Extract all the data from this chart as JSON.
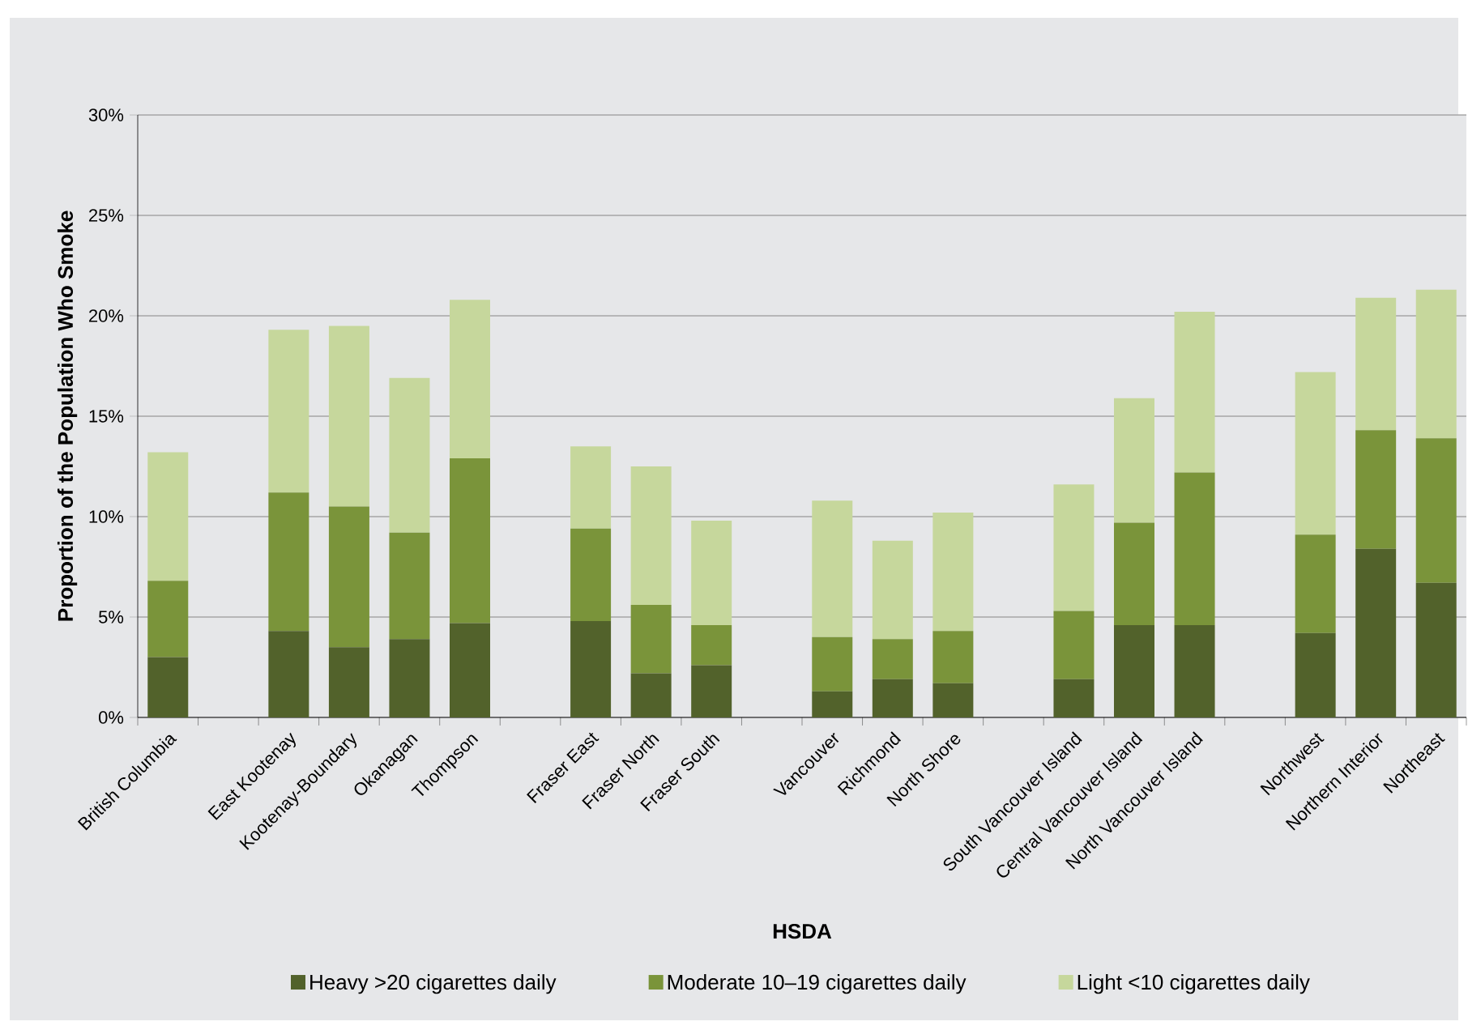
{
  "chart_data": {
    "type": "bar",
    "stacked": true,
    "xlabel": "HSDA",
    "ylabel": "Proportion of the Population Who Smoke",
    "categories": [
      "British Columbia",
      null,
      "East Kootenay",
      "Kootenay-Boundary",
      "Okanagan",
      "Thompson",
      null,
      "Fraser East",
      "Fraser North",
      "Fraser South",
      null,
      "Vancouver",
      "Richmond",
      "North Shore",
      null,
      "South Vancouver Island",
      "Central Vancouver Island",
      "North Vancouver Island",
      null,
      "Northwest",
      "Northern Interior",
      "Northeast"
    ],
    "series": [
      {
        "name": "Heavy >20 cigarettes daily",
        "color": "#52622b",
        "values": [
          3.0,
          null,
          4.3,
          3.5,
          3.9,
          4.7,
          null,
          4.8,
          2.2,
          2.6,
          null,
          1.3,
          1.9,
          1.7,
          null,
          1.9,
          4.6,
          4.6,
          null,
          4.2,
          8.4,
          6.7
        ]
      },
      {
        "name": "Moderate 10–19 cigarettes daily",
        "color": "#7a943a",
        "values": [
          3.8,
          null,
          6.9,
          7.0,
          5.3,
          8.2,
          null,
          4.6,
          3.4,
          2.0,
          null,
          2.7,
          2.0,
          2.6,
          null,
          3.4,
          5.1,
          7.6,
          null,
          4.9,
          5.9,
          7.2
        ]
      },
      {
        "name": "Light <10 cigarettes daily",
        "color": "#c6d79c",
        "values": [
          6.4,
          null,
          8.1,
          9.0,
          7.7,
          7.9,
          null,
          4.1,
          6.9,
          5.2,
          null,
          6.8,
          4.9,
          5.9,
          null,
          6.3,
          6.2,
          8.0,
          null,
          8.1,
          6.6,
          7.4
        ]
      }
    ],
    "ylim": [
      0,
      30
    ],
    "yticks": [
      {
        "value": 0,
        "label": "0%"
      },
      {
        "value": 5,
        "label": "5%"
      },
      {
        "value": 10,
        "label": "10%"
      },
      {
        "value": 15,
        "label": "15%"
      },
      {
        "value": 20,
        "label": "20%"
      },
      {
        "value": 25,
        "label": "25%"
      },
      {
        "value": 30,
        "label": "30%"
      }
    ],
    "grid": "y",
    "legend": "bottom"
  }
}
